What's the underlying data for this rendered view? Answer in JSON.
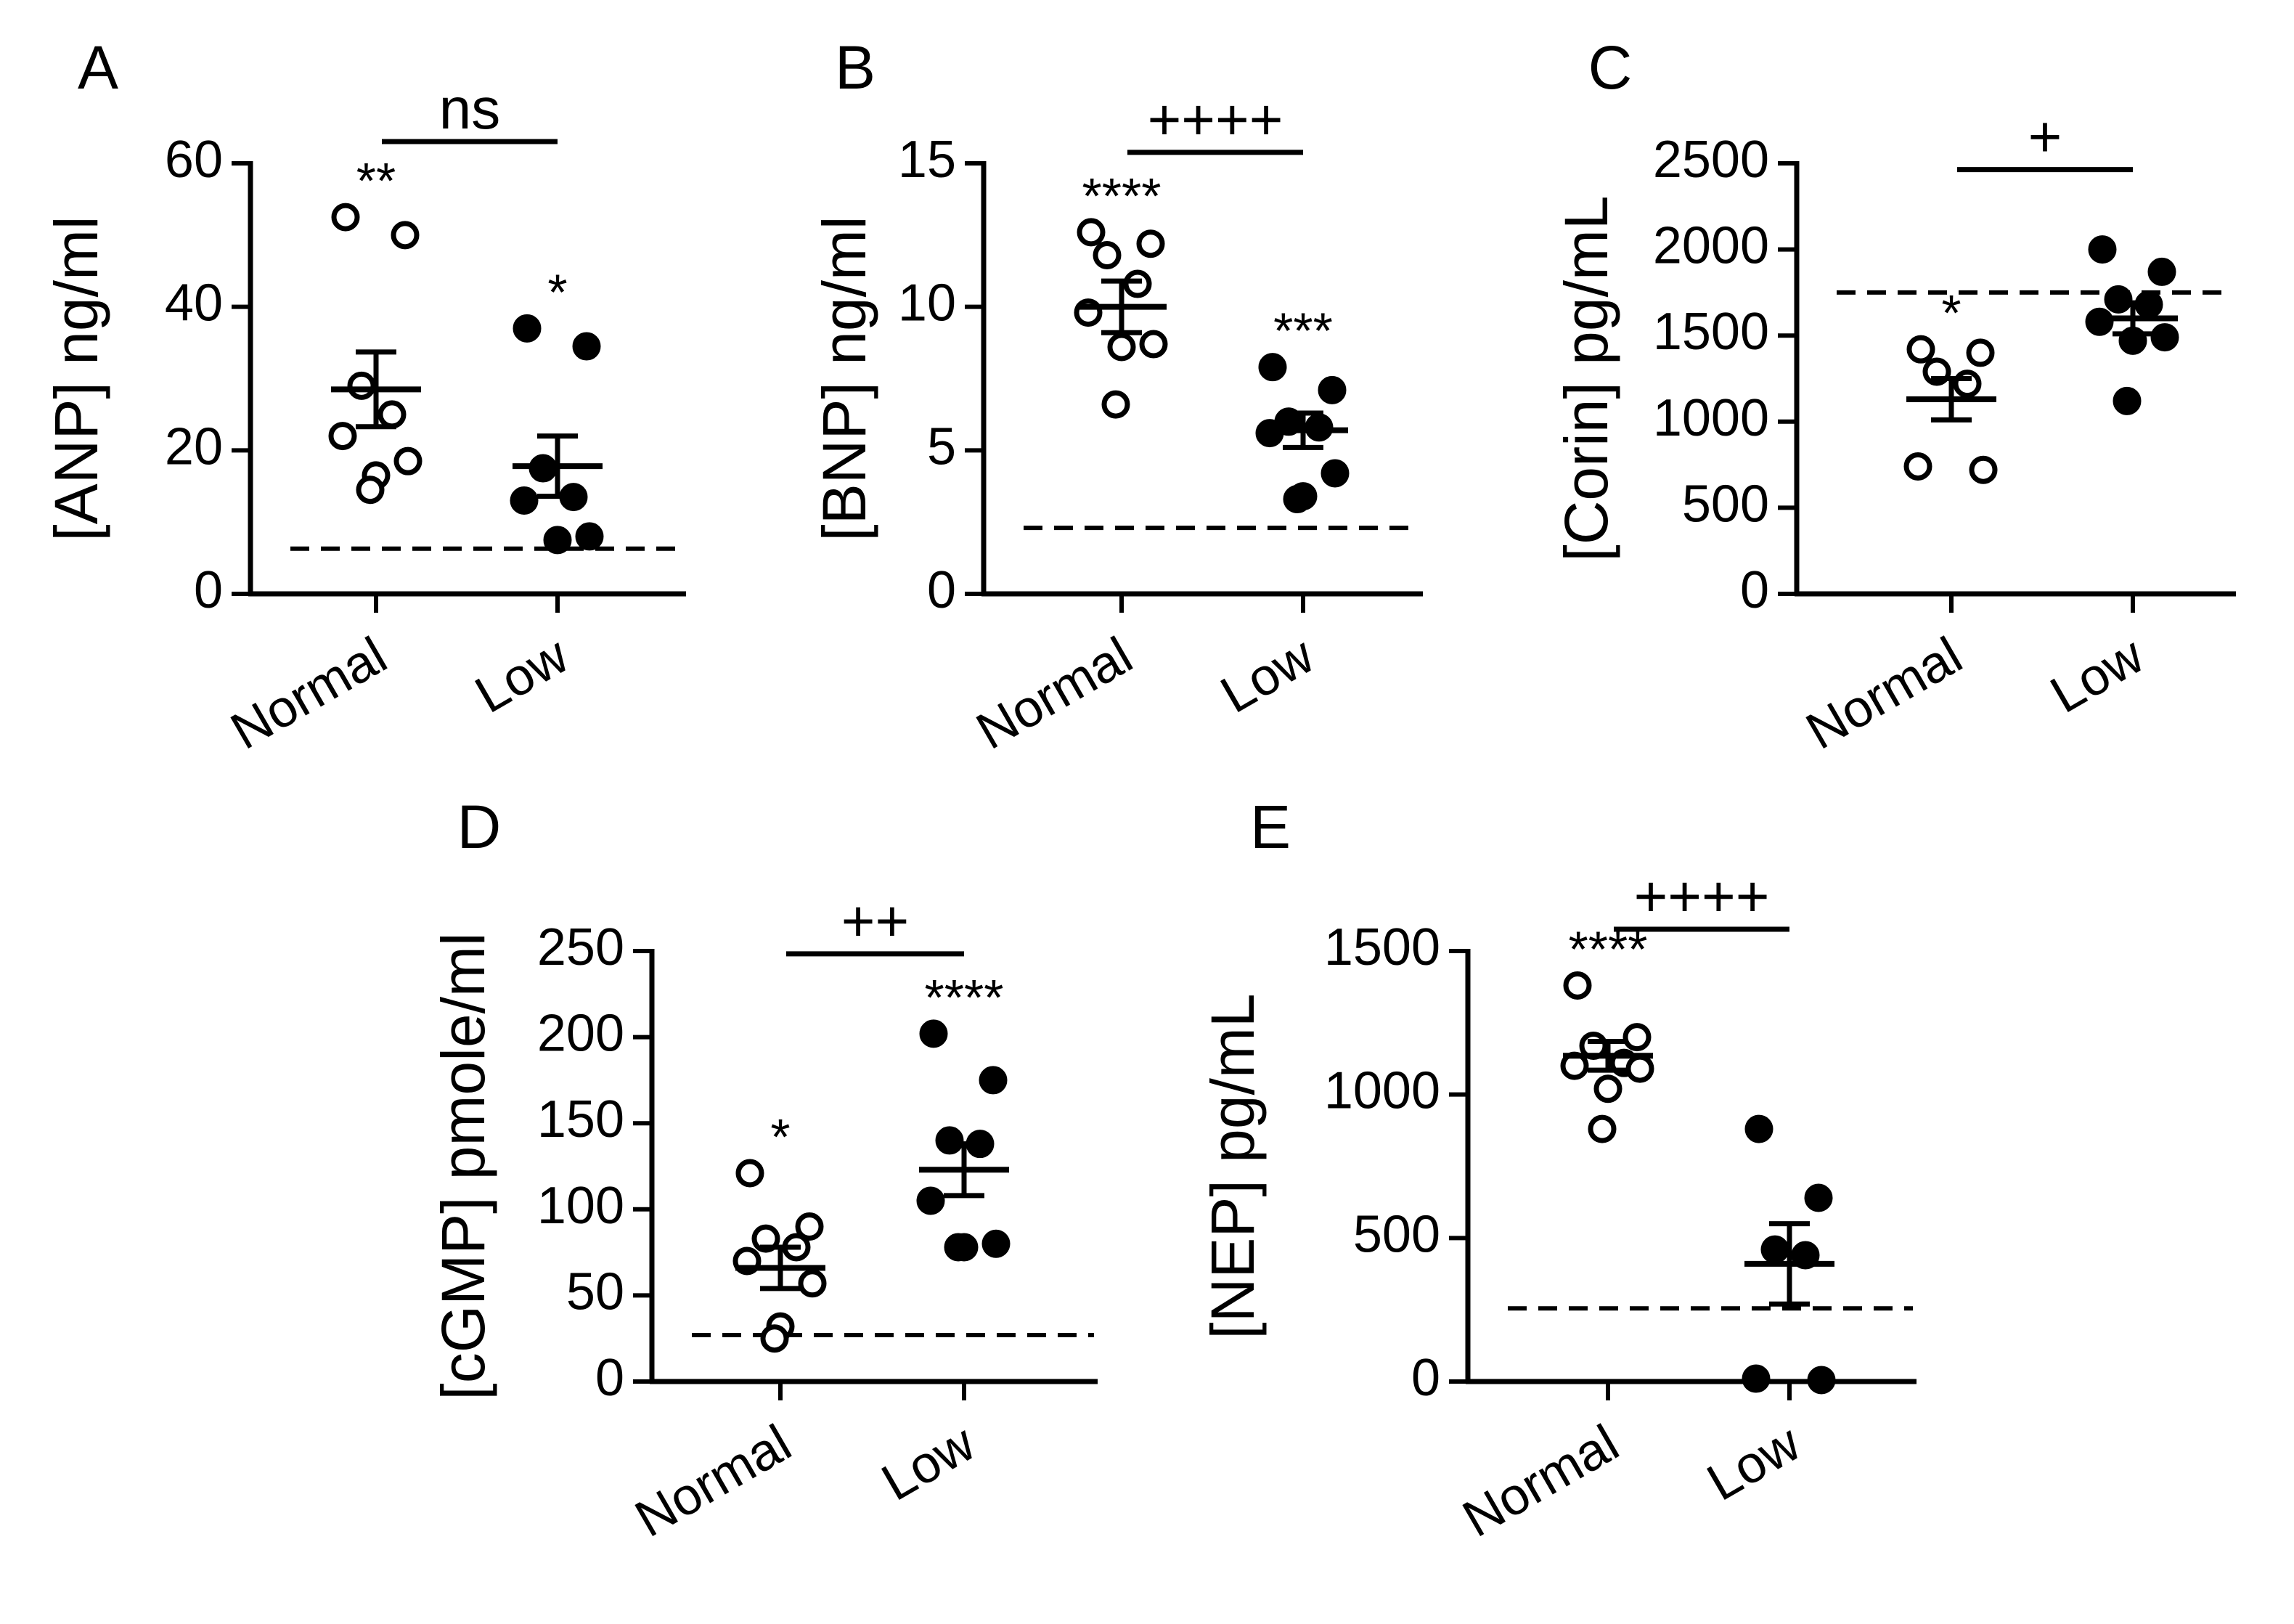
{
  "chart_data": [
    {
      "type": "scatter",
      "panel": "A",
      "ylabel": "[ANP] ng/ml",
      "categories": [
        "Normal",
        "Low"
      ],
      "ylim": [
        0,
        60
      ],
      "yticks": [
        0,
        20,
        40,
        60
      ],
      "reference_line": 6.3,
      "comparison": {
        "label": "ns"
      },
      "series": [
        {
          "name": "Normal",
          "filled": false,
          "mean": 28.5,
          "sem": 5.2,
          "stars": "**",
          "values": [
            52.5,
            50,
            29,
            25,
            22,
            18.5,
            16.5,
            14.5
          ]
        },
        {
          "name": "Low",
          "filled": true,
          "mean": 17.8,
          "sem": 4.2,
          "stars": "*",
          "values": [
            37,
            34.5,
            17.5,
            13.5,
            13,
            8,
            7.5
          ]
        }
      ]
    },
    {
      "type": "scatter",
      "panel": "B",
      "ylabel": "[BNP] ng/ml",
      "categories": [
        "Normal",
        "Low"
      ],
      "ylim": [
        0,
        15
      ],
      "yticks": [
        0,
        5,
        10,
        15
      ],
      "reference_line": 2.3,
      "comparison": {
        "label": "++++"
      },
      "series": [
        {
          "name": "Normal",
          "filled": false,
          "mean": 10.0,
          "sem": 0.9,
          "stars": "****",
          "values": [
            12.6,
            12.2,
            11.8,
            10.8,
            9.8,
            8.7,
            8.6,
            6.6
          ]
        },
        {
          "name": "Low",
          "filled": true,
          "mean": 5.7,
          "sem": 0.6,
          "stars": "***",
          "values": [
            7.9,
            7.1,
            6.0,
            5.8,
            5.6,
            4.2,
            3.4,
            3.3
          ]
        }
      ]
    },
    {
      "type": "scatter",
      "panel": "C",
      "ylabel": "[Corin] pg/mL",
      "categories": [
        "Normal",
        "Low"
      ],
      "ylim": [
        0,
        2500
      ],
      "yticks": [
        0,
        500,
        1000,
        1500,
        2000,
        2500
      ],
      "reference_line": 1750,
      "comparison": {
        "label": "+"
      },
      "series": [
        {
          "name": "Normal",
          "filled": false,
          "mean": 1130,
          "sem": 120,
          "stars": "*",
          "values": [
            1420,
            1400,
            1290,
            1220,
            740,
            720
          ]
        },
        {
          "name": "Low",
          "filled": true,
          "mean": 1600,
          "sem": 90,
          "stars": "",
          "values": [
            2000,
            1870,
            1710,
            1680,
            1580,
            1490,
            1470,
            1120
          ]
        }
      ]
    },
    {
      "type": "scatter",
      "panel": "D",
      "ylabel": "[cGMP] pmole/ml",
      "categories": [
        "Normal",
        "Low"
      ],
      "ylim": [
        0,
        250
      ],
      "yticks": [
        0,
        50,
        100,
        150,
        200,
        250
      ],
      "reference_line": 27,
      "comparison": {
        "label": "++"
      },
      "series": [
        {
          "name": "Normal",
          "filled": false,
          "mean": 66,
          "sem": 12,
          "stars": "*",
          "values": [
            121,
            90,
            83,
            78,
            70,
            57,
            32,
            25
          ]
        },
        {
          "name": "Low",
          "filled": true,
          "mean": 123,
          "sem": 15,
          "stars": "****",
          "values": [
            202,
            175,
            140,
            138,
            105,
            80,
            78,
            78
          ]
        }
      ]
    },
    {
      "type": "scatter",
      "panel": "E",
      "ylabel": "[NEP] pg/mL",
      "categories": [
        "Normal",
        "Low"
      ],
      "ylim": [
        0,
        1500
      ],
      "yticks": [
        0,
        500,
        1000,
        1500
      ],
      "reference_line": 255,
      "comparison": {
        "label": "++++"
      },
      "series": [
        {
          "name": "Normal",
          "filled": false,
          "mean": 1135,
          "sem": 50,
          "stars": "****",
          "values": [
            1380,
            1200,
            1170,
            1110,
            1100,
            1090,
            1020,
            880
          ]
        },
        {
          "name": "Low",
          "filled": true,
          "mean": 410,
          "sem": 140,
          "stars": "",
          "values": [
            880,
            640,
            460,
            440,
            10,
            5
          ]
        }
      ]
    }
  ]
}
